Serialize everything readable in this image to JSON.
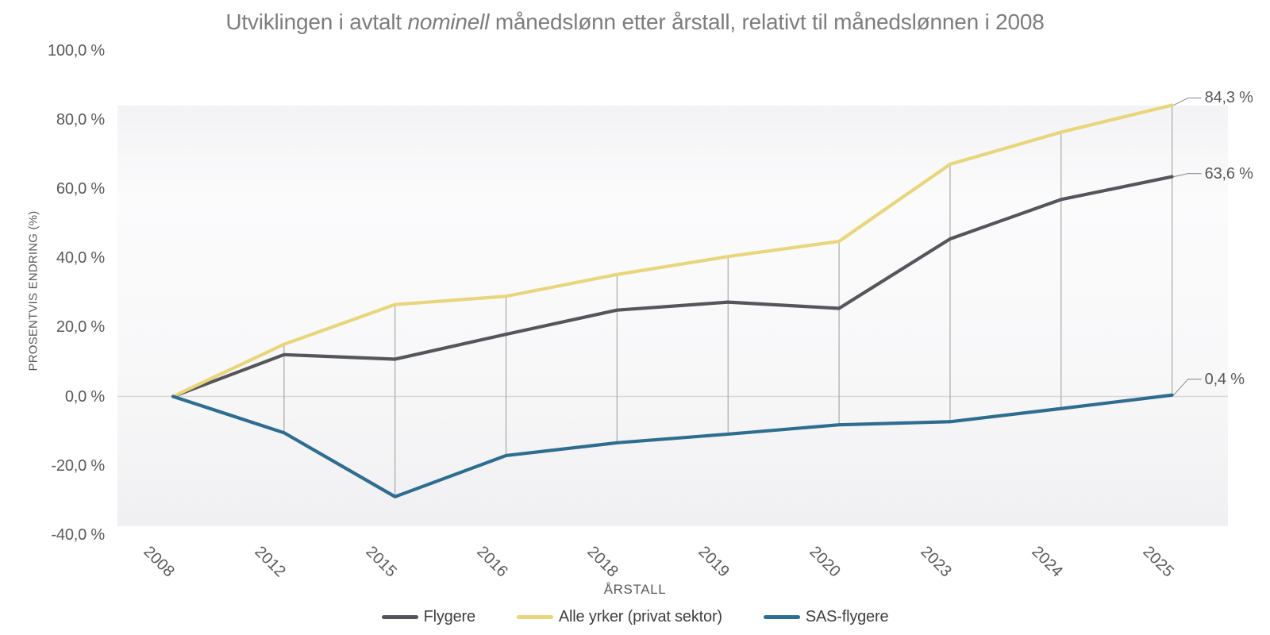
{
  "title": {
    "text_before_italic": "Utviklingen i avtalt ",
    "italic_word": "nominell",
    "text_after_italic": " månedslønn etter årstall, relativt til månedslønnen i 2008"
  },
  "y_axis": {
    "title": "PROSENTVIS ENDRING (%)",
    "tick_labels": [
      "100,0 %",
      "80,0 %",
      "60,0 %",
      "40,0 %",
      "20,0 %",
      "0,0 %",
      "-20,0 %",
      "-40,0 %"
    ],
    "tick_values": [
      100,
      80,
      60,
      40,
      20,
      0,
      -20,
      -40
    ]
  },
  "x_axis": {
    "title": "ÅRSTALL",
    "categories": [
      "2008",
      "2012",
      "2015",
      "2016",
      "2018",
      "2019",
      "2020",
      "2023",
      "2024",
      "2025"
    ]
  },
  "legend": {
    "items": [
      {
        "label": "Flygere",
        "color": "#54565B"
      },
      {
        "label": "Alle yrker (privat sektor)",
        "color": "#E8D57C"
      },
      {
        "label": "SAS-flygere",
        "color": "#2E6D90"
      }
    ]
  },
  "colors": {
    "title_text": "#7d7d7d",
    "axis_text": "#595959",
    "zero_gridline": "#d7d7d7",
    "highlow_line": "#a9a9a9",
    "leader_line": "#9b9b9b",
    "plot_bg_top": "#f3f3f5",
    "plot_bg_mid": "#fbfbfc",
    "plot_bg_bottom": "#f0f0f2"
  },
  "chart_data": {
    "type": "line",
    "title": "Utviklingen i avtalt nominell månedslønn etter årstall, relativt til månedslønnen i 2008",
    "xlabel": "ÅRSTALL",
    "ylabel": "PROSENTVIS ENDRING (%)",
    "ylim": [
      -40,
      100
    ],
    "y_tick_step": 20,
    "grid": "zero line + vertical high-low lines connecting max and min series at each category",
    "legend_position": "bottom",
    "categories": [
      "2008",
      "2012",
      "2015",
      "2016",
      "2018",
      "2019",
      "2020",
      "2023",
      "2024",
      "2025"
    ],
    "series": [
      {
        "name": "Flygere",
        "color": "#54565B",
        "values": [
          0.0,
          12.1,
          10.8,
          18.0,
          25.0,
          27.3,
          25.5,
          45.6,
          57.0,
          63.6
        ],
        "end_label": "63,6 %"
      },
      {
        "name": "Alle yrker (privat sektor)",
        "color": "#E8D57C",
        "values": [
          0.0,
          15.1,
          26.6,
          29.0,
          35.3,
          40.5,
          44.9,
          67.2,
          76.5,
          84.3
        ],
        "end_label": "84,3 %"
      },
      {
        "name": "SAS-flygere",
        "color": "#2E6D90",
        "values": [
          0.0,
          -10.5,
          -29.0,
          -17.1,
          -13.4,
          -10.9,
          -8.2,
          -7.3,
          -3.5,
          0.4
        ],
        "end_label": "0,4 %"
      }
    ]
  }
}
